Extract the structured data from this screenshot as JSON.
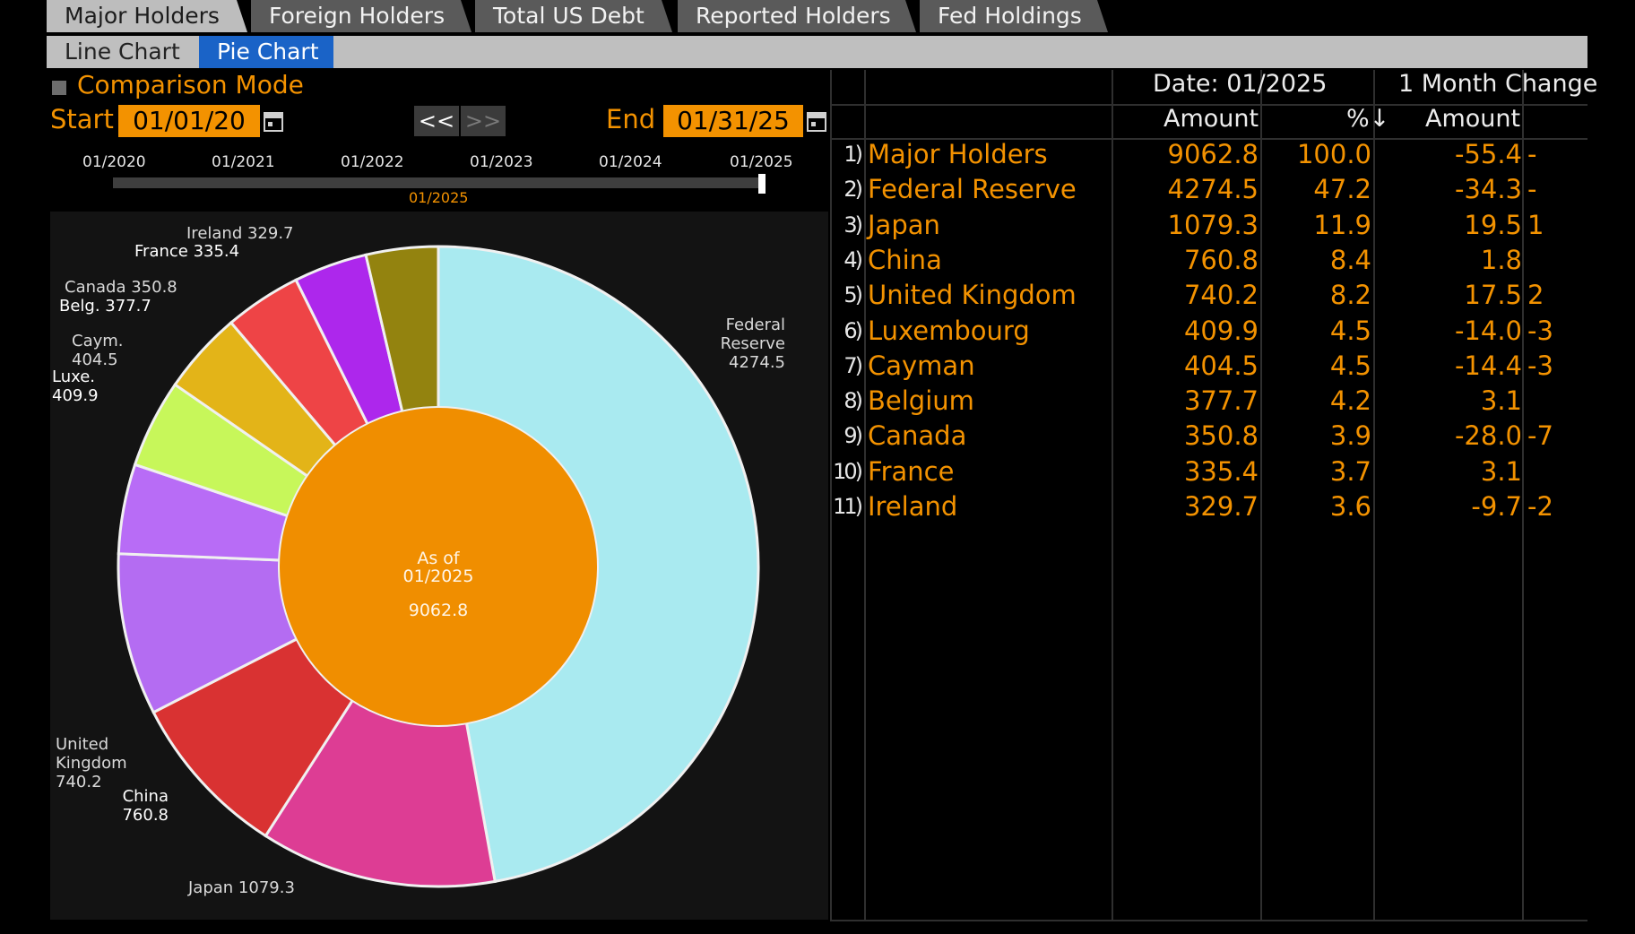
{
  "tabs": [
    "Major Holders",
    "Foreign Holders",
    "Total US Debt",
    "Reported Holders",
    "Fed Holdings"
  ],
  "subtabs": {
    "line": "Line Chart",
    "pie": "Pie Chart"
  },
  "controls": {
    "comparison_mode": "Comparison Mode",
    "start_label": "Start",
    "start_date": "01/01/20",
    "end_label": "End",
    "end_date": "01/31/25",
    "prev": "<<",
    "next": ">>",
    "timeline_ticks": [
      "01/2020",
      "01/2021",
      "01/2022",
      "01/2023",
      "01/2024",
      "01/2025"
    ],
    "timeline_current": "01/2025"
  },
  "chart_data": {
    "type": "pie",
    "center": {
      "line1": "As of",
      "line2": "01/2025",
      "total": "9062.8"
    },
    "slices": [
      {
        "name": "Federal Reserve",
        "value": 4274.5,
        "color": "#a9eaf0",
        "label": "Federal\nReserve\n4274.5"
      },
      {
        "name": "Japan",
        "value": 1079.3,
        "color": "#dd3d94",
        "label": "Japan     1079.3"
      },
      {
        "name": "China",
        "value": 760.8,
        "color": "#d93232",
        "label": "China\n760.8"
      },
      {
        "name": "United Kingdom",
        "value": 740.2,
        "color": "#b46cf2",
        "label": "United\nKingdom\n740.2"
      },
      {
        "name": "Luxembourg",
        "value": 409.9,
        "color": "#b86cf6",
        "label": "Luxe.\n409.9"
      },
      {
        "name": "Cayman",
        "value": 404.5,
        "color": "#c7f75a",
        "label": "Caym.\n404.5"
      },
      {
        "name": "Belgium",
        "value": 377.7,
        "color": "#e3b418",
        "label": "Belg.   377.7"
      },
      {
        "name": "Canada",
        "value": 350.8,
        "color": "#ee4446",
        "label": "Canada    350.8"
      },
      {
        "name": "France",
        "value": 335.4,
        "color": "#ad27ec",
        "label": "France    335.4"
      },
      {
        "name": "Ireland",
        "value": 329.7,
        "color": "#93830f",
        "label": "Ireland     329.7"
      }
    ],
    "center_color": "#f08e00"
  },
  "table": {
    "header_date": "Date: 01/2025",
    "header_change": "1 Month Change",
    "col_amount": "Amount",
    "col_pct": "%↓",
    "col_change_amount": "Amount",
    "rows": [
      {
        "num": "1)",
        "name": "Major Holders",
        "amount": "9062.8",
        "pct": "100.0",
        "chg": "-55.4",
        "chg2": "-"
      },
      {
        "num": "2)",
        "name": "Federal Reserve",
        "amount": "4274.5",
        "pct": "47.2",
        "chg": "-34.3",
        "chg2": "-"
      },
      {
        "num": "3)",
        "name": "Japan",
        "amount": "1079.3",
        "pct": "11.9",
        "chg": "19.5",
        "chg2": "1"
      },
      {
        "num": "4)",
        "name": "China",
        "amount": "760.8",
        "pct": "8.4",
        "chg": "1.8",
        "chg2": ""
      },
      {
        "num": "5)",
        "name": "United Kingdom",
        "amount": "740.2",
        "pct": "8.2",
        "chg": "17.5",
        "chg2": "2"
      },
      {
        "num": "6)",
        "name": "Luxembourg",
        "amount": "409.9",
        "pct": "4.5",
        "chg": "-14.0",
        "chg2": "-3"
      },
      {
        "num": "7)",
        "name": "Cayman",
        "amount": "404.5",
        "pct": "4.5",
        "chg": "-14.4",
        "chg2": "-3"
      },
      {
        "num": "8)",
        "name": "Belgium",
        "amount": "377.7",
        "pct": "4.2",
        "chg": "3.1",
        "chg2": ""
      },
      {
        "num": "9)",
        "name": "Canada",
        "amount": "350.8",
        "pct": "3.9",
        "chg": "-28.0",
        "chg2": "-7"
      },
      {
        "num": "10)",
        "name": "France",
        "amount": "335.4",
        "pct": "3.7",
        "chg": "3.1",
        "chg2": ""
      },
      {
        "num": "11)",
        "name": "Ireland",
        "amount": "329.7",
        "pct": "3.6",
        "chg": "-9.7",
        "chg2": "-2"
      }
    ]
  }
}
